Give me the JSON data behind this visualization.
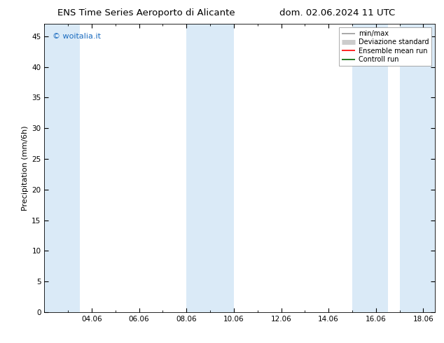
{
  "title_left": "ENS Time Series Aeroporto di Alicante",
  "title_right": "dom. 02.06.2024 11 UTC",
  "ylabel": "Precipitation (mm/6h)",
  "watermark": "© woitalia.it",
  "watermark_color": "#1a6bbf",
  "ylim": [
    0,
    47
  ],
  "yticks": [
    0,
    5,
    10,
    15,
    20,
    25,
    30,
    35,
    40,
    45
  ],
  "xtick_labels": [
    "04.06",
    "06.06",
    "08.06",
    "10.06",
    "12.06",
    "14.06",
    "16.06",
    "18.06"
  ],
  "xtick_positions": [
    4,
    6,
    8,
    10,
    12,
    14,
    16,
    18
  ],
  "shaded_bands": [
    {
      "xmin": 2.0,
      "xmax": 3.5
    },
    {
      "xmin": 8.0,
      "xmax": 10.0
    },
    {
      "xmin": 15.0,
      "xmax": 16.5
    },
    {
      "xmin": 17.0,
      "xmax": 18.5
    }
  ],
  "band_color": "#daeaf7",
  "xmin": 2.0,
  "xmax": 18.5,
  "legend_items": [
    {
      "label": "min/max",
      "color": "#999999",
      "lw": 1.2
    },
    {
      "label": "Deviazione standard",
      "color": "#cccccc",
      "lw": 5
    },
    {
      "label": "Ensemble mean run",
      "color": "#ff0000",
      "lw": 1.2
    },
    {
      "label": "Controll run",
      "color": "#006400",
      "lw": 1.2
    }
  ],
  "title_fontsize": 9.5,
  "tick_label_fontsize": 7.5,
  "ylabel_fontsize": 8,
  "watermark_fontsize": 8,
  "legend_fontsize": 7,
  "background_color": "#ffffff",
  "axes_bg_color": "#ffffff"
}
